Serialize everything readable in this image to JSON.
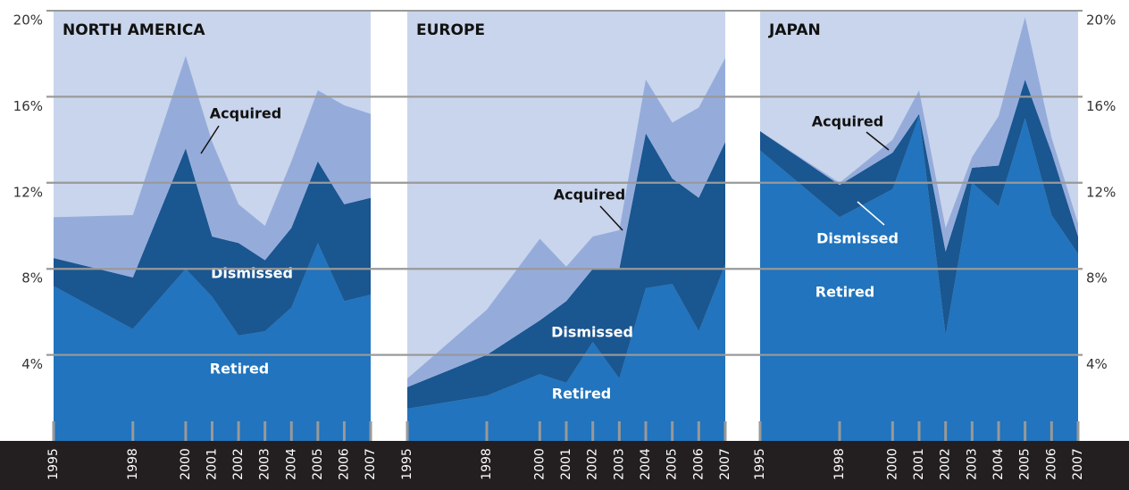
{
  "chart_data": [
    {
      "type": "area",
      "title": "NORTH AMERICA",
      "stacked": true,
      "x": [
        1995,
        1998,
        2000,
        2001,
        2002,
        2003,
        2004,
        2005,
        2006,
        2007
      ],
      "xlim": [
        1995,
        2007
      ],
      "xticks": [
        1995,
        1998,
        2000,
        2001,
        2002,
        2003,
        2004,
        2005,
        2006,
        2007
      ],
      "ylim": [
        0,
        20
      ],
      "yticks": [
        {
          "value": 4,
          "label": "4%"
        },
        {
          "value": 8,
          "label": "8%"
        },
        {
          "value": 12,
          "label": "12%"
        },
        {
          "value": 16,
          "label": "16%"
        },
        {
          "value": 20,
          "label": "20%"
        }
      ],
      "grid": true,
      "series": [
        {
          "name": "Retired",
          "color": "#2174bd",
          "values": [
            7.2,
            5.2,
            8.0,
            6.7,
            4.9,
            5.1,
            6.2,
            9.2,
            6.5,
            6.8
          ]
        },
        {
          "name": "Dismissed",
          "color": "#1a5690",
          "values": [
            1.3,
            2.4,
            5.6,
            2.8,
            4.3,
            3.3,
            3.7,
            3.8,
            4.5,
            4.5
          ]
        },
        {
          "name": "Acquired",
          "color": "#95acdb",
          "values": [
            1.9,
            2.9,
            4.3,
            4.4,
            1.8,
            1.6,
            3.1,
            3.3,
            4.6,
            3.9
          ]
        }
      ]
    },
    {
      "type": "area",
      "title": "EUROPE",
      "stacked": true,
      "x": [
        1995,
        1998,
        2000,
        2001,
        2002,
        2003,
        2004,
        2005,
        2006,
        2007
      ],
      "xlim": [
        1995,
        2007
      ],
      "xticks": [
        1995,
        1998,
        2000,
        2001,
        2002,
        2003,
        2004,
        2005,
        2006,
        2007
      ],
      "ylim": [
        0,
        20
      ],
      "series": [
        {
          "name": "Retired",
          "color": "#2174bd",
          "values": [
            1.5,
            2.1,
            3.1,
            2.7,
            4.6,
            2.9,
            7.1,
            7.3,
            5.1,
            8.2
          ]
        },
        {
          "name": "Dismissed",
          "color": "#1a5690",
          "values": [
            1.0,
            1.9,
            2.5,
            3.8,
            3.4,
            5.1,
            7.2,
            4.9,
            6.2,
            5.7
          ]
        },
        {
          "name": "Acquired",
          "color": "#95acdb",
          "values": [
            0.4,
            2.1,
            3.8,
            1.6,
            1.5,
            1.8,
            2.5,
            2.6,
            4.2,
            3.9
          ]
        }
      ]
    },
    {
      "type": "area",
      "title": "JAPAN",
      "stacked": true,
      "x": [
        1995,
        1998,
        2000,
        2001,
        2002,
        2003,
        2004,
        2005,
        2006,
        2007
      ],
      "xlim": [
        1995,
        2007
      ],
      "xticks": [
        1995,
        1998,
        2000,
        2001,
        2002,
        2003,
        2004,
        2005,
        2006,
        2007
      ],
      "ylim": [
        0,
        20
      ],
      "y2lim": [
        0,
        20
      ],
      "y2ticks": [
        {
          "value": 4,
          "label": "4%"
        },
        {
          "value": 8,
          "label": "8%"
        },
        {
          "value": 12,
          "label": "12%"
        },
        {
          "value": 16,
          "label": "16%"
        },
        {
          "value": 20,
          "label": "20%"
        }
      ],
      "series": [
        {
          "name": "Retired",
          "color": "#2174bd",
          "values": [
            13.5,
            10.4,
            11.7,
            15.1,
            4.9,
            12.0,
            10.9,
            15.0,
            10.5,
            8.7
          ]
        },
        {
          "name": "Dismissed",
          "color": "#1a5690",
          "values": [
            0.9,
            1.5,
            1.7,
            0.1,
            3.9,
            0.7,
            1.9,
            1.8,
            2.9,
            0.8
          ]
        },
        {
          "name": "Acquired",
          "color": "#95acdb",
          "values": [
            0,
            0.1,
            0.6,
            1.1,
            1.1,
            0.5,
            2.3,
            2.9,
            0.7,
            0.6
          ]
        }
      ]
    }
  ]
}
